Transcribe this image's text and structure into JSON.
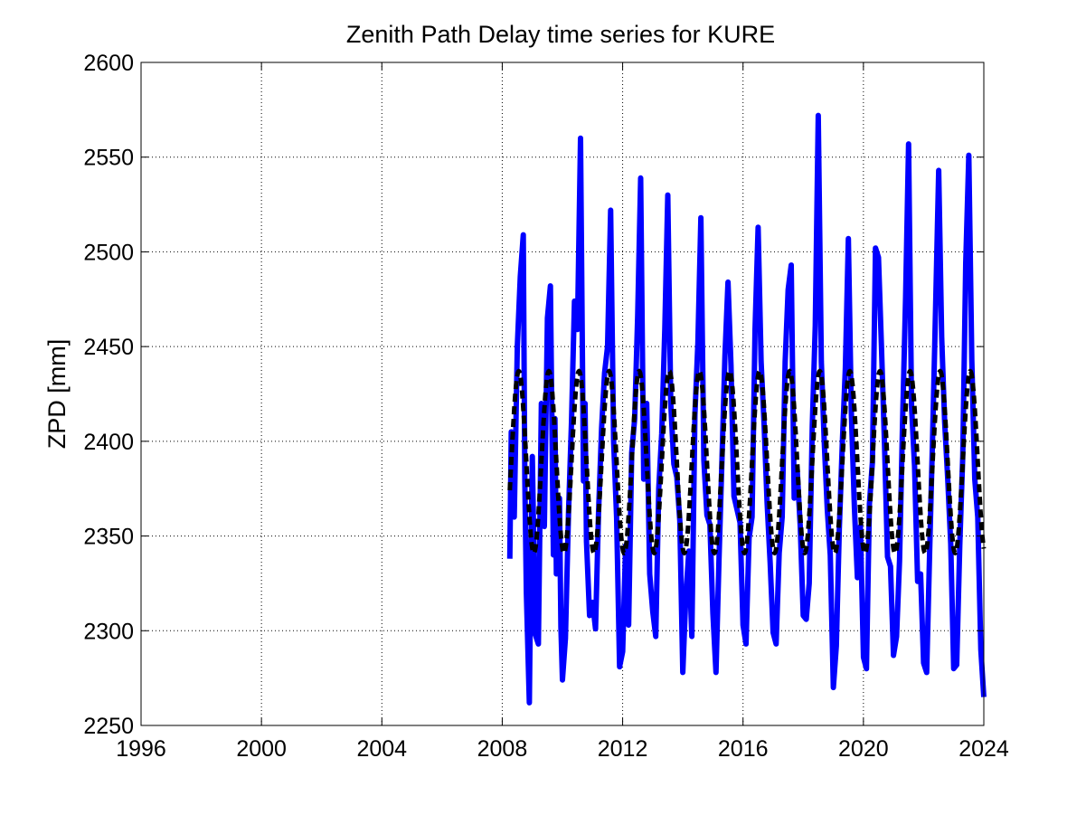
{
  "chart_data": {
    "type": "line",
    "title": "Zenith Path Delay time series for KURE",
    "xlabel": "",
    "ylabel": "ZPD [mm]",
    "xlim": [
      1996,
      2024
    ],
    "ylim": [
      2250,
      2600
    ],
    "x_ticks": [
      1996,
      2000,
      2004,
      2008,
      2012,
      2016,
      2020,
      2024
    ],
    "y_ticks": [
      2250,
      2300,
      2350,
      2400,
      2450,
      2500,
      2550,
      2600
    ],
    "grid": true,
    "legend": "none",
    "series": [
      {
        "color": "#0000ff",
        "style": "solid",
        "x_range": [
          2008.25,
          2024.0
        ],
        "x": [
          2008.25,
          2008.3,
          2008.4,
          2008.5,
          2008.6,
          2008.7,
          2008.75,
          2008.8,
          2008.9,
          2008.95,
          2009.0,
          2009.1,
          2009.2,
          2009.3,
          2009.4,
          2009.5,
          2009.6,
          2009.7,
          2009.75,
          2009.8,
          2009.9,
          2009.95,
          2010.0,
          2010.1,
          2010.2,
          2010.3,
          2010.4,
          2010.5,
          2010.6,
          2010.7,
          2010.75,
          2010.8,
          2010.9,
          2011.0,
          2011.1,
          2011.2,
          2011.3,
          2011.4,
          2011.5,
          2011.6,
          2011.7,
          2011.8,
          2011.9,
          2012.0,
          2012.1,
          2012.2,
          2012.3,
          2012.4,
          2012.5,
          2012.6,
          2012.7,
          2012.8,
          2012.9,
          2013.0,
          2013.1,
          2013.2,
          2013.3,
          2013.4,
          2013.5,
          2013.6,
          2013.7,
          2013.8,
          2013.9,
          2014.0,
          2014.1,
          2014.2,
          2014.3,
          2014.4,
          2014.5,
          2014.6,
          2014.7,
          2014.8,
          2014.9,
          2015.0,
          2015.1,
          2015.2,
          2015.3,
          2015.4,
          2015.5,
          2015.6,
          2015.7,
          2015.8,
          2015.9,
          2016.0,
          2016.1,
          2016.2,
          2016.3,
          2016.4,
          2016.5,
          2016.6,
          2016.7,
          2016.8,
          2016.9,
          2017.0,
          2017.1,
          2017.2,
          2017.3,
          2017.4,
          2017.5,
          2017.6,
          2017.7,
          2017.8,
          2017.9,
          2018.0,
          2018.1,
          2018.2,
          2018.3,
          2018.4,
          2018.5,
          2018.6,
          2018.7,
          2018.8,
          2018.9,
          2019.0,
          2019.1,
          2019.2,
          2019.3,
          2019.4,
          2019.5,
          2019.6,
          2019.7,
          2019.8,
          2019.9,
          2020.0,
          2020.1,
          2020.2,
          2020.3,
          2020.4,
          2020.5,
          2020.6,
          2020.7,
          2020.8,
          2020.9,
          2021.0,
          2021.1,
          2021.2,
          2021.3,
          2021.4,
          2021.5,
          2021.6,
          2021.7,
          2021.8,
          2021.9,
          2022.0,
          2022.1,
          2022.2,
          2022.3,
          2022.4,
          2022.5,
          2022.6,
          2022.7,
          2022.8,
          2022.9,
          2023.0,
          2023.1,
          2023.2,
          2023.3,
          2023.4,
          2023.5,
          2023.6,
          2023.7,
          2023.8,
          2023.9,
          2024.0
        ],
        "y": [
          2338,
          2405,
          2360,
          2450,
          2487,
          2509,
          2380,
          2320,
          2262,
          2340,
          2392,
          2298,
          2293,
          2420,
          2355,
          2465,
          2482,
          2340,
          2412,
          2330,
          2370,
          2302,
          2274,
          2296,
          2362,
          2410,
          2474,
          2459,
          2560,
          2379,
          2420,
          2347,
          2308,
          2315,
          2301,
          2362,
          2407,
          2436,
          2450,
          2522,
          2400,
          2360,
          2281,
          2289,
          2345,
          2303,
          2394,
          2412,
          2466,
          2539,
          2380,
          2420,
          2330,
          2310,
          2297,
          2375,
          2404,
          2459,
          2530,
          2420,
          2388,
          2381,
          2358,
          2278,
          2319,
          2342,
          2297,
          2414,
          2452,
          2518,
          2390,
          2361,
          2356,
          2309,
          2278,
          2337,
          2390,
          2445,
          2484,
          2440,
          2371,
          2364,
          2357,
          2303,
          2293,
          2349,
          2360,
          2459,
          2513,
          2442,
          2409,
          2368,
          2336,
          2299,
          2293,
          2341,
          2360,
          2442,
          2480,
          2493,
          2370,
          2385,
          2355,
          2308,
          2306,
          2325,
          2408,
          2461,
          2572,
          2442,
          2399,
          2364,
          2340,
          2270,
          2292,
          2354,
          2400,
          2439,
          2507,
          2415,
          2365,
          2328,
          2355,
          2286,
          2280,
          2367,
          2389,
          2502,
          2497,
          2450,
          2398,
          2339,
          2334,
          2287,
          2297,
          2337,
          2409,
          2476,
          2557,
          2418,
          2387,
          2326,
          2330,
          2283,
          2278,
          2342,
          2403,
          2471,
          2543,
          2455,
          2410,
          2380,
          2346,
          2280,
          2282,
          2345,
          2392,
          2494,
          2551,
          2443,
          2380,
          2360,
          2290,
          2265
        ]
      },
      {
        "color": "#000000",
        "style": "dashed",
        "model": "annual sinusoid",
        "mean": 2389,
        "amplitude": 48,
        "period_years": 1.0,
        "peak_phase_year_fraction": 0.55,
        "x_range": [
          2008.25,
          2024.0
        ]
      }
    ]
  }
}
